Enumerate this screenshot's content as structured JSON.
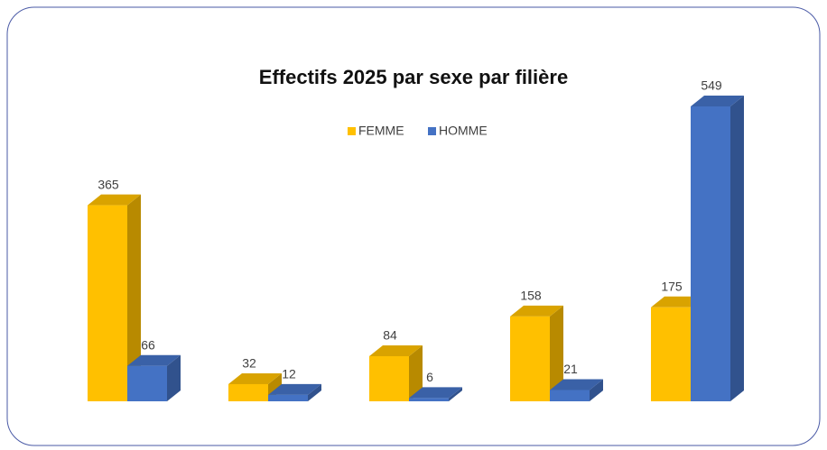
{
  "chart_data": {
    "type": "bar3d",
    "title": "Effectifs 2025 par sexe par filière",
    "categories": [
      null,
      null,
      null,
      null,
      null
    ],
    "series": [
      {
        "name": "FEMME",
        "color": "#ffc000",
        "values": [
          365,
          32,
          84,
          158,
          175
        ]
      },
      {
        "name": "HOMME",
        "color": "#4472c4",
        "values": [
          66,
          12,
          6,
          21,
          549
        ]
      }
    ],
    "legend": "top"
  }
}
